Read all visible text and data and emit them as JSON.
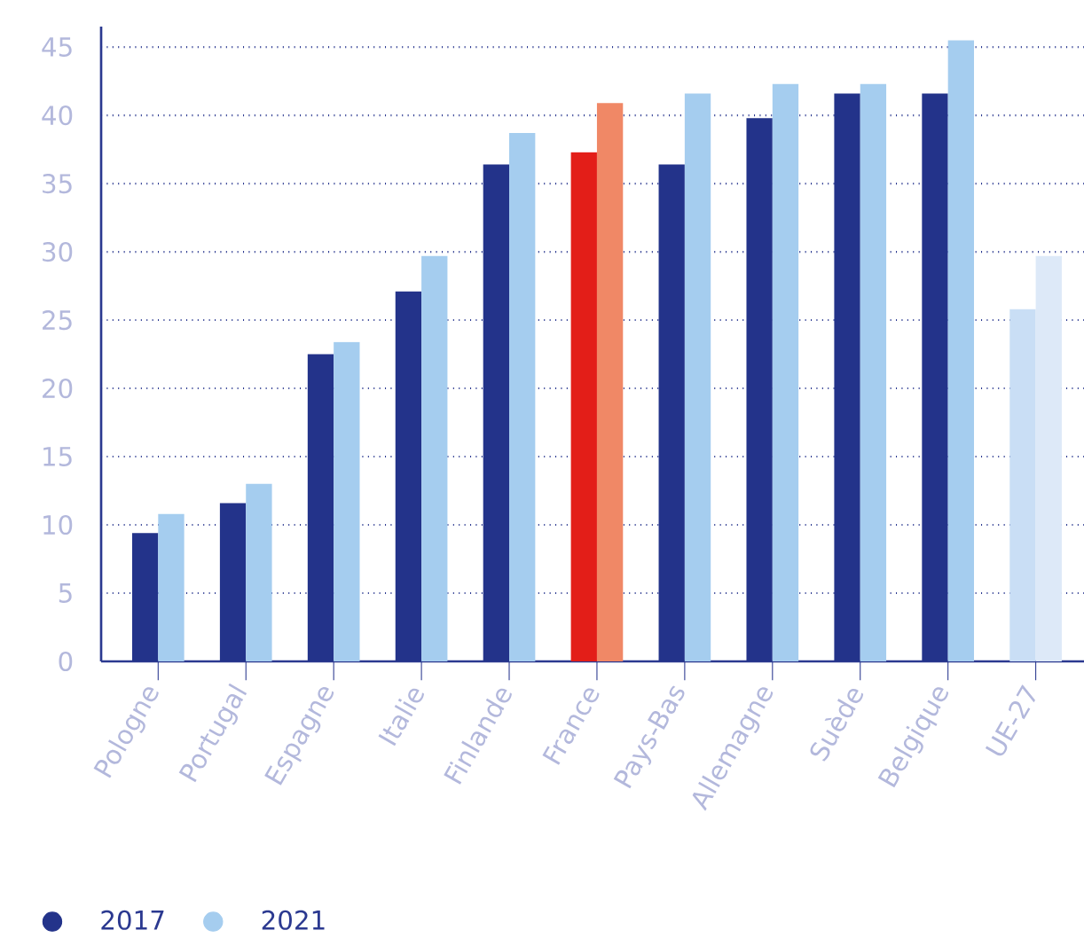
{
  "chart_data": {
    "type": "bar",
    "categories": [
      "Pologne",
      "Portugal",
      "Espagne",
      "Italie",
      "Finlande",
      "France",
      "Pays-Bas",
      "Allemagne",
      "Suède",
      "Belgique",
      "UE-27"
    ],
    "series": [
      {
        "name": "2017",
        "color": "#23338a",
        "colors": [
          "#23338a",
          "#23338a",
          "#23338a",
          "#23338a",
          "#23338a",
          "#e31e18",
          "#23338a",
          "#23338a",
          "#23338a",
          "#23338a",
          "#c9def5"
        ],
        "values": [
          9.4,
          11.6,
          22.5,
          27.1,
          36.4,
          37.3,
          36.4,
          39.8,
          41.6,
          41.6,
          25.8
        ]
      },
      {
        "name": "2021",
        "color": "#a5cdef",
        "colors": [
          "#a5cdef",
          "#a5cdef",
          "#a5cdef",
          "#a5cdef",
          "#a5cdef",
          "#f08866",
          "#a5cdef",
          "#a5cdef",
          "#a5cdef",
          "#a5cdef",
          "#dde9f8"
        ],
        "values": [
          10.8,
          13.0,
          23.4,
          29.7,
          38.7,
          40.9,
          41.6,
          42.3,
          42.3,
          45.5,
          29.7
        ]
      }
    ],
    "ylim": [
      0,
      46.5
    ],
    "yticks": [
      0,
      5,
      10,
      15,
      20,
      25,
      30,
      35,
      40,
      45
    ],
    "grid": "y",
    "legend": "bottom left"
  }
}
